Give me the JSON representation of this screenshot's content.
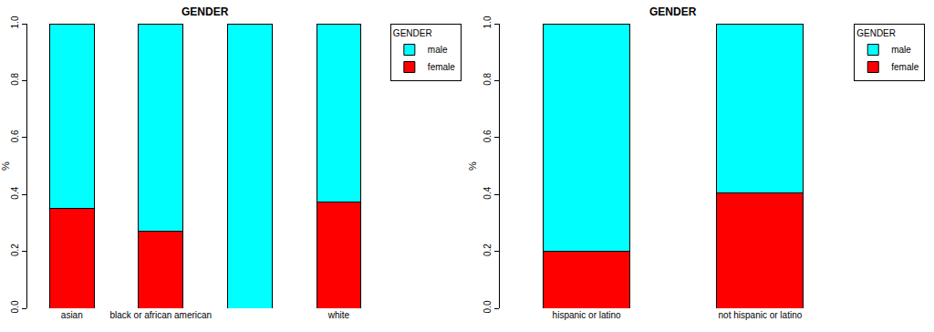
{
  "chart_data": [
    {
      "type": "bar",
      "stacked": true,
      "title": "GENDER",
      "y_label": "%",
      "legend": "top right",
      "legend_title": "GENDER",
      "categories": [
        "asian",
        "black or african american",
        null,
        "white"
      ],
      "series": [
        {
          "name": "female",
          "color": "#ff0000",
          "values": [
            0.35,
            0.27,
            0,
            0.375
          ]
        },
        {
          "name": "male",
          "color": "#00ffff",
          "values": [
            0.65,
            0.73,
            1,
            0.625
          ]
        }
      ],
      "ylim": [
        0,
        1
      ],
      "yticks": [
        {
          "value": 0,
          "label": "0.0"
        },
        0.2,
        0.4,
        0.6,
        0.8,
        {
          "value": 1,
          "label": "1.0"
        }
      ],
      "grid": false
    },
    {
      "type": "bar",
      "stacked": true,
      "title": "GENDER",
      "y_label": "%",
      "legend": "top right",
      "legend_title": "GENDER",
      "categories": [
        "hispanic or latino",
        "not hispanic or latino"
      ],
      "series": [
        {
          "name": "female",
          "color": "#ff0000",
          "values": [
            0.2,
            0.405
          ]
        },
        {
          "name": "male",
          "color": "#00ffff",
          "values": [
            0.8,
            0.595
          ]
        }
      ],
      "ylim": [
        0,
        1
      ],
      "yticks": [
        {
          "value": 0,
          "label": "0.0"
        },
        0.2,
        0.4,
        0.6,
        0.8,
        {
          "value": 1,
          "label": "1.0"
        }
      ],
      "grid": false
    }
  ]
}
